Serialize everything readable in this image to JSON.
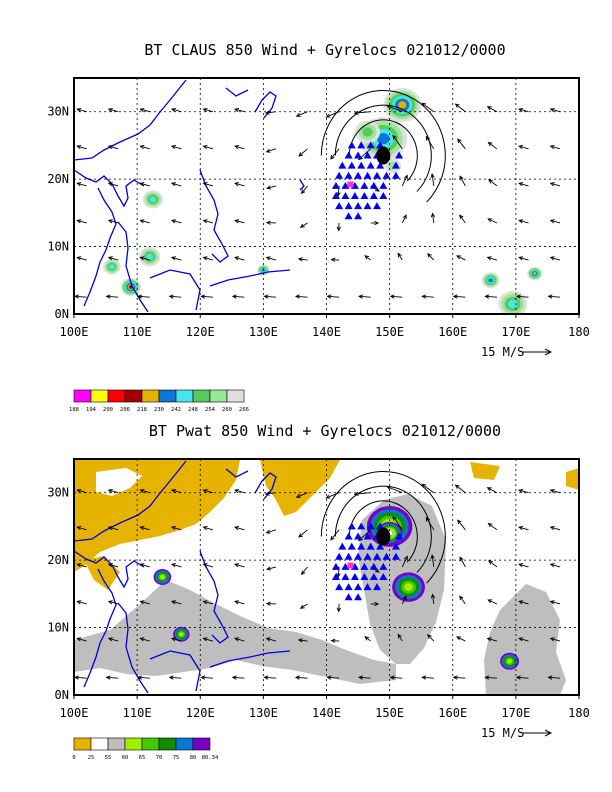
{
  "chart_data": [
    {
      "type": "heatmap",
      "title": "BT CLAUS 850 Wind + Gyrelocs 021012/0000",
      "x_ticks": [
        "100E",
        "110E",
        "120E",
        "130E",
        "140E",
        "150E",
        "160E",
        "170E",
        "180"
      ],
      "y_ticks": [
        "0N",
        "10N",
        "20N",
        "30N"
      ],
      "xlim": [
        100,
        180
      ],
      "ylim": [
        0,
        35
      ],
      "grid": true,
      "vector_reference": "15 M/S",
      "colorbar": {
        "labels": [
          "188",
          "194",
          "200",
          "206",
          "218",
          "230",
          "242",
          "248",
          "254",
          "260",
          "266"
        ],
        "colors": [
          "#ff00ff",
          "#ffff00",
          "#ff0000",
          "#a00000",
          "#e6b000",
          "#0a78d2",
          "#46e6f0",
          "#5ac85a",
          "#9ae69a",
          "#e0e0e0"
        ]
      },
      "fields": [
        {
          "lon": 149,
          "lat": 26,
          "level": 4,
          "radius": 3.8
        },
        {
          "lon": 146.5,
          "lat": 27,
          "level": 2,
          "radius": 2.0
        },
        {
          "lon": 150.5,
          "lat": 22,
          "level": 1,
          "radius": 1.3
        },
        {
          "lon": 152,
          "lat": 31,
          "level": 5,
          "radius": 3.0
        },
        {
          "lon": 112.5,
          "lat": 17,
          "level": 3,
          "radius": 1.6
        },
        {
          "lon": 112,
          "lat": 8.5,
          "level": 3,
          "radius": 1.7
        },
        {
          "lon": 106,
          "lat": 7,
          "level": 3,
          "radius": 1.4
        },
        {
          "lon": 109,
          "lat": 4,
          "level": 6,
          "radius": 1.6
        },
        {
          "lon": 130,
          "lat": 6.5,
          "level": 4,
          "radius": 1.0
        },
        {
          "lon": 169.5,
          "lat": 1.5,
          "level": 3,
          "radius": 2.3
        },
        {
          "lon": 166,
          "lat": 5,
          "level": 4,
          "radius": 1.4
        },
        {
          "lon": 173,
          "lat": 6,
          "level": 5,
          "radius": 1.2
        }
      ],
      "gyrelocs": {
        "points": [
          [
            144,
            25
          ],
          [
            145.5,
            25
          ],
          [
            147,
            25
          ],
          [
            148.5,
            25
          ],
          [
            143.5,
            23.5
          ],
          [
            145,
            23.5
          ],
          [
            146.5,
            23.5
          ],
          [
            148,
            23.5
          ],
          [
            151.5,
            23.5
          ],
          [
            142.5,
            22
          ],
          [
            144,
            22
          ],
          [
            145.5,
            22
          ],
          [
            147,
            22
          ],
          [
            148.5,
            22
          ],
          [
            151,
            22
          ],
          [
            142,
            20.5
          ],
          [
            143.5,
            20.5
          ],
          [
            145,
            20.5
          ],
          [
            146.5,
            20.5
          ],
          [
            148,
            20.5
          ],
          [
            149.5,
            20.5
          ],
          [
            151,
            20.5
          ],
          [
            141.5,
            19
          ],
          [
            143,
            19
          ],
          [
            144.5,
            19
          ],
          [
            146,
            19
          ],
          [
            147.5,
            19
          ],
          [
            149,
            19
          ],
          [
            141.5,
            17.5
          ],
          [
            143,
            17.5
          ],
          [
            144.5,
            17.5
          ],
          [
            146,
            17.5
          ],
          [
            147.5,
            17.5
          ],
          [
            149,
            17.5
          ],
          [
            142,
            16
          ],
          [
            143.5,
            16
          ],
          [
            145,
            16
          ],
          [
            146.5,
            16
          ],
          [
            148,
            16
          ],
          [
            143.5,
            14.5
          ],
          [
            145,
            14.5
          ]
        ],
        "center": [
          149,
          23.5
        ],
        "origin": [
          143.8,
          19.2
        ],
        "marker_color": "#0000ff",
        "center_color": "#000000",
        "origin_color": "#ff33cc"
      }
    },
    {
      "type": "heatmap",
      "title": "BT Pwat 850 Wind + Gyrelocs 021012/0000",
      "x_ticks": [
        "100E",
        "110E",
        "120E",
        "130E",
        "140E",
        "150E",
        "160E",
        "170E",
        "180"
      ],
      "y_ticks": [
        "0N",
        "10N",
        "20N",
        "30N"
      ],
      "xlim": [
        100,
        180
      ],
      "ylim": [
        0,
        35
      ],
      "grid": true,
      "vector_reference": "15 M/S",
      "colorbar": {
        "labels": [
          "0",
          "25",
          "55",
          "60",
          "65",
          "70",
          "75",
          "80",
          "80.34"
        ],
        "colors": [
          "#e6b400",
          "#ffffff",
          "#bebebe",
          "#a0f000",
          "#46c800",
          "#148c00",
          "#0a78d2",
          "#7800c8"
        ]
      },
      "fields": [
        {
          "lon": 150,
          "lat": 25,
          "level": 5,
          "radius": 3.6
        },
        {
          "lon": 150,
          "lat": 24,
          "level": 6,
          "radius": 2.0
        },
        {
          "lon": 153,
          "lat": 16,
          "level": 4,
          "radius": 2.6
        },
        {
          "lon": 114,
          "lat": 17.5,
          "level": 4,
          "radius": 1.4
        },
        {
          "lon": 117,
          "lat": 9,
          "level": 4,
          "radius": 1.3
        },
        {
          "lon": 169,
          "lat": 5,
          "level": 4,
          "radius": 1.5
        }
      ],
      "gyrelocs": {
        "points": [
          [
            144,
            25
          ],
          [
            145.5,
            25
          ],
          [
            147,
            25
          ],
          [
            148.5,
            25
          ],
          [
            143.5,
            23.5
          ],
          [
            145,
            23.5
          ],
          [
            146.5,
            23.5
          ],
          [
            148,
            23.5
          ],
          [
            151.5,
            23.5
          ],
          [
            142.5,
            22
          ],
          [
            144,
            22
          ],
          [
            145.5,
            22
          ],
          [
            147,
            22
          ],
          [
            148.5,
            22
          ],
          [
            151,
            22
          ],
          [
            142,
            20.5
          ],
          [
            143.5,
            20.5
          ],
          [
            145,
            20.5
          ],
          [
            146.5,
            20.5
          ],
          [
            148,
            20.5
          ],
          [
            149.5,
            20.5
          ],
          [
            151,
            20.5
          ],
          [
            141.5,
            19
          ],
          [
            143,
            19
          ],
          [
            144.5,
            19
          ],
          [
            146,
            19
          ],
          [
            147.5,
            19
          ],
          [
            149,
            19
          ],
          [
            141.5,
            17.5
          ],
          [
            143,
            17.5
          ],
          [
            144.5,
            17.5
          ],
          [
            146,
            17.5
          ],
          [
            147.5,
            17.5
          ],
          [
            149,
            17.5
          ],
          [
            142,
            16
          ],
          [
            143.5,
            16
          ],
          [
            145,
            16
          ],
          [
            146.5,
            16
          ],
          [
            148,
            16
          ],
          [
            143.5,
            14.5
          ],
          [
            145,
            14.5
          ]
        ],
        "center": [
          149,
          23.5
        ],
        "origin": [
          143.8,
          19.2
        ],
        "marker_color": "#0000ff",
        "center_color": "#000000",
        "origin_color": "#ff33cc"
      }
    }
  ]
}
